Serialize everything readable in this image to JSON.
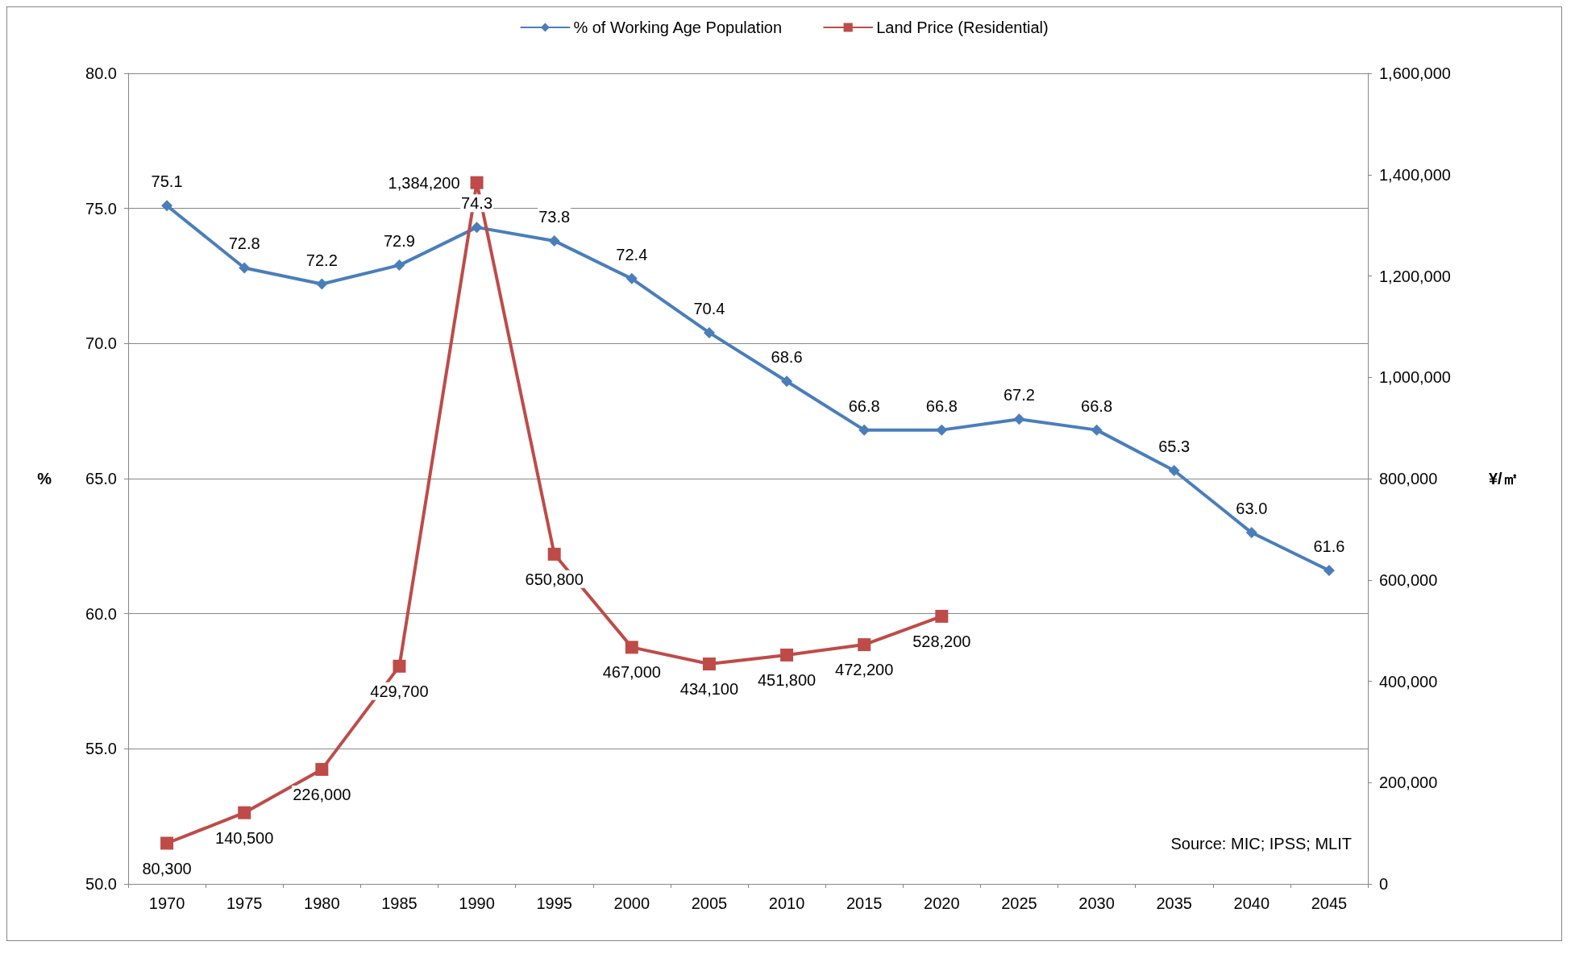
{
  "chart_data": {
    "type": "line",
    "categories": [
      "1970",
      "1975",
      "1980",
      "1985",
      "1990",
      "1995",
      "2000",
      "2005",
      "2010",
      "2015",
      "2020",
      "2025",
      "2030",
      "2035",
      "2040",
      "2045"
    ],
    "ylabel": "%",
    "y2label": "¥/㎡",
    "ylim": [
      50,
      80
    ],
    "yticks": [
      {
        "value": 50,
        "label": "50.0"
      },
      {
        "value": 55,
        "label": "55.0"
      },
      {
        "value": 60,
        "label": "60.0"
      },
      {
        "value": 65,
        "label": "65.0"
      },
      {
        "value": 70,
        "label": "70.0"
      },
      {
        "value": 75,
        "label": "75.0"
      },
      {
        "value": 80,
        "label": "80.0"
      }
    ],
    "y2lim": [
      0,
      1600000
    ],
    "y2ticks": [
      0,
      {
        "value": 200000,
        "label": "200,000"
      },
      {
        "value": 400000,
        "label": "400,000"
      },
      {
        "value": 600000,
        "label": "600,000"
      },
      {
        "value": 800000,
        "label": "800,000"
      },
      {
        "value": 1000000,
        "label": "1,000,000"
      },
      {
        "value": 1200000,
        "label": "1,200,000"
      },
      {
        "value": 1400000,
        "label": "1,400,000"
      },
      {
        "value": 1600000,
        "label": "1,600,000"
      }
    ],
    "grid": "y",
    "legend": "top",
    "line_style": "solid",
    "annotations": [
      "Source: MIC; IPSS; MLIT"
    ],
    "series": [
      {
        "name": "% of Working Age Population",
        "color": "#4a7ebb",
        "marker": "diamond",
        "values": [
          75.1,
          72.8,
          72.2,
          72.9,
          74.3,
          73.8,
          72.4,
          70.4,
          68.6,
          66.8,
          66.8,
          67.2,
          66.8,
          65.3,
          63.0,
          61.6
        ],
        "value_labels": [
          "75.1",
          "72.8",
          "72.2",
          "72.9",
          "74.3",
          "73.8",
          "72.4",
          "70.4",
          "68.6",
          "66.8",
          "66.8",
          "67.2",
          "66.8",
          "65.3",
          "63.0",
          "61.6"
        ]
      },
      {
        "name": "Land Price (Residential)",
        "color": "#be4b48",
        "marker": "square",
        "axis": "y2",
        "values": [
          80300,
          140500,
          226000,
          429700,
          1384200,
          650800,
          467000,
          434100,
          451800,
          472200,
          528200,
          null,
          null,
          null,
          null,
          null
        ],
        "value_labels": [
          "80,300",
          "140,500",
          "226,000",
          "429,700",
          "1,384,200",
          "650,800",
          "467,000",
          "434,100",
          "451,800",
          "472,200",
          "528,200",
          null,
          null,
          null,
          null,
          null
        ]
      }
    ]
  }
}
